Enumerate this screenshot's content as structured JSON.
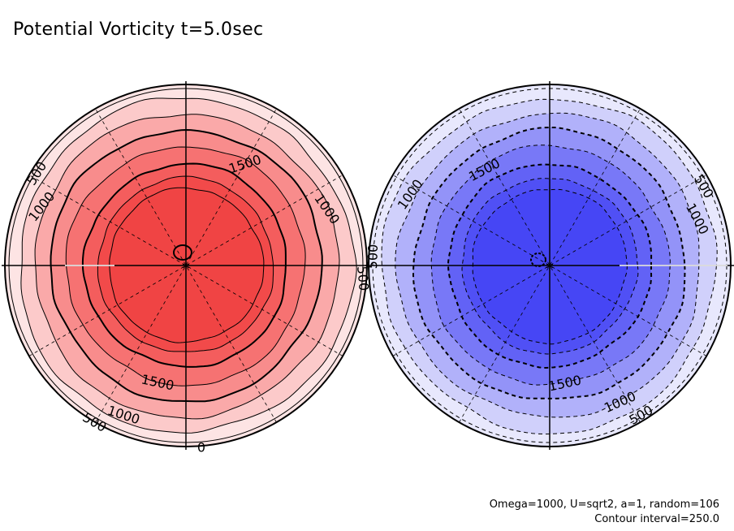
{
  "title": "Potential Vorticity t=5.0sec",
  "annotations": {
    "params": "Omega=1000, U=sqrt2, a=1, random=106",
    "contour_interval": "Contour interval=250.0"
  },
  "chart_data": [
    {
      "type": "polar-contour",
      "hemisphere": "north",
      "sign": "positive",
      "contour_style": "solid",
      "fill_levels": [
        0,
        250,
        500,
        750,
        1000,
        1250,
        1500,
        1750
      ],
      "fill_colors": [
        "#fde4e4",
        "#fccaca",
        "#faa9a9",
        "#f88c8c",
        "#f67272",
        "#f45d5d",
        "#f24a4a",
        "#f04444"
      ],
      "contour_labels": [
        {
          "value": 500,
          "text": "500"
        },
        {
          "value": 1000,
          "text": "1000"
        },
        {
          "value": 1500,
          "text": "1500"
        },
        {
          "value": 1000,
          "text": "1000"
        },
        {
          "value": 500,
          "text": "500"
        },
        {
          "value": 1500,
          "text": "1500"
        },
        {
          "value": 1000,
          "text": "1000"
        },
        {
          "value": 500,
          "text": "500"
        },
        {
          "value": 0,
          "text": "0"
        }
      ],
      "grid": true,
      "meridian_spacing_deg": 30
    },
    {
      "type": "polar-contour",
      "hemisphere": "south",
      "sign": "negative",
      "contour_style": "dashed",
      "fill_levels": [
        0,
        -250,
        -500,
        -750,
        -1000,
        -1250,
        -1500,
        -1750
      ],
      "fill_colors": [
        "#e8e8fd",
        "#d0d0fb",
        "#b1b1fa",
        "#9393f8",
        "#7878f7",
        "#6262f6",
        "#5050f5",
        "#4646f5"
      ],
      "contour_labels": [
        {
          "value": 500,
          "text": "500"
        },
        {
          "value": 1000,
          "text": "1000"
        },
        {
          "value": 1500,
          "text": "1500"
        },
        {
          "value": 500,
          "text": "500"
        },
        {
          "value": 1000,
          "text": "1000"
        },
        {
          "value": 1500,
          "text": "1500"
        },
        {
          "value": 1000,
          "text": "1000"
        },
        {
          "value": 500,
          "text": "500"
        }
      ],
      "grid": true,
      "meridian_spacing_deg": 30
    }
  ]
}
